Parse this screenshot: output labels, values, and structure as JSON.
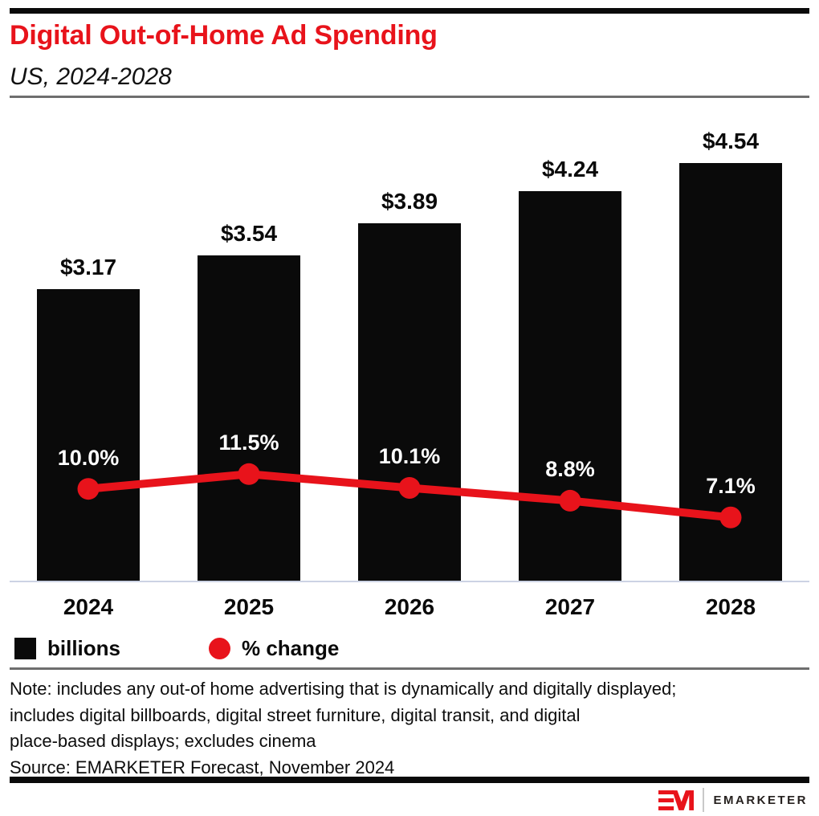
{
  "header": {
    "title": "Digital Out-of-Home Ad Spending",
    "subtitle": "US, 2024-2028"
  },
  "chart_data": {
    "type": "bar",
    "title": "Digital Out-of-Home Ad Spending",
    "subtitle": "US, 2024-2028",
    "categories": [
      "2024",
      "2025",
      "2026",
      "2027",
      "2028"
    ],
    "series": [
      {
        "name": "billions",
        "type": "bar",
        "unit": "US$ billions",
        "values": [
          3.17,
          3.54,
          3.89,
          4.24,
          4.54
        ],
        "labels": [
          "$3.17",
          "$3.54",
          "$3.89",
          "$4.24",
          "$4.54"
        ],
        "color": "#0a0a0a"
      },
      {
        "name": "% change",
        "type": "line",
        "unit": "percent",
        "values": [
          10.0,
          11.5,
          10.1,
          8.8,
          7.1
        ],
        "labels": [
          "10.0%",
          "11.5%",
          "10.1%",
          "8.8%",
          "7.1%"
        ],
        "color": "#e8131b"
      }
    ],
    "legend_position": "bottom-left",
    "grid": false,
    "value_axis_visible": false
  },
  "legend": {
    "bar_label": "billions",
    "line_label": "% change"
  },
  "notes": {
    "lines": [
      "Note: includes any out-of home advertising that is dynamically and digitally displayed;",
      "includes digital billboards, digital street furniture, digital transit, and digital",
      "place-based displays; excludes cinema"
    ],
    "source": "Source: EMARKETER Forecast, November 2024"
  },
  "brand": {
    "logo_mark": "EM-logo",
    "logo_text": "EMARKETER"
  },
  "colors": {
    "accent_red": "#e8131b",
    "bar_black": "#0a0a0a",
    "axis_line": "#ccd3e4",
    "rule_gray": "#6e6e6e",
    "divider_gray": "#c9c9c9"
  }
}
